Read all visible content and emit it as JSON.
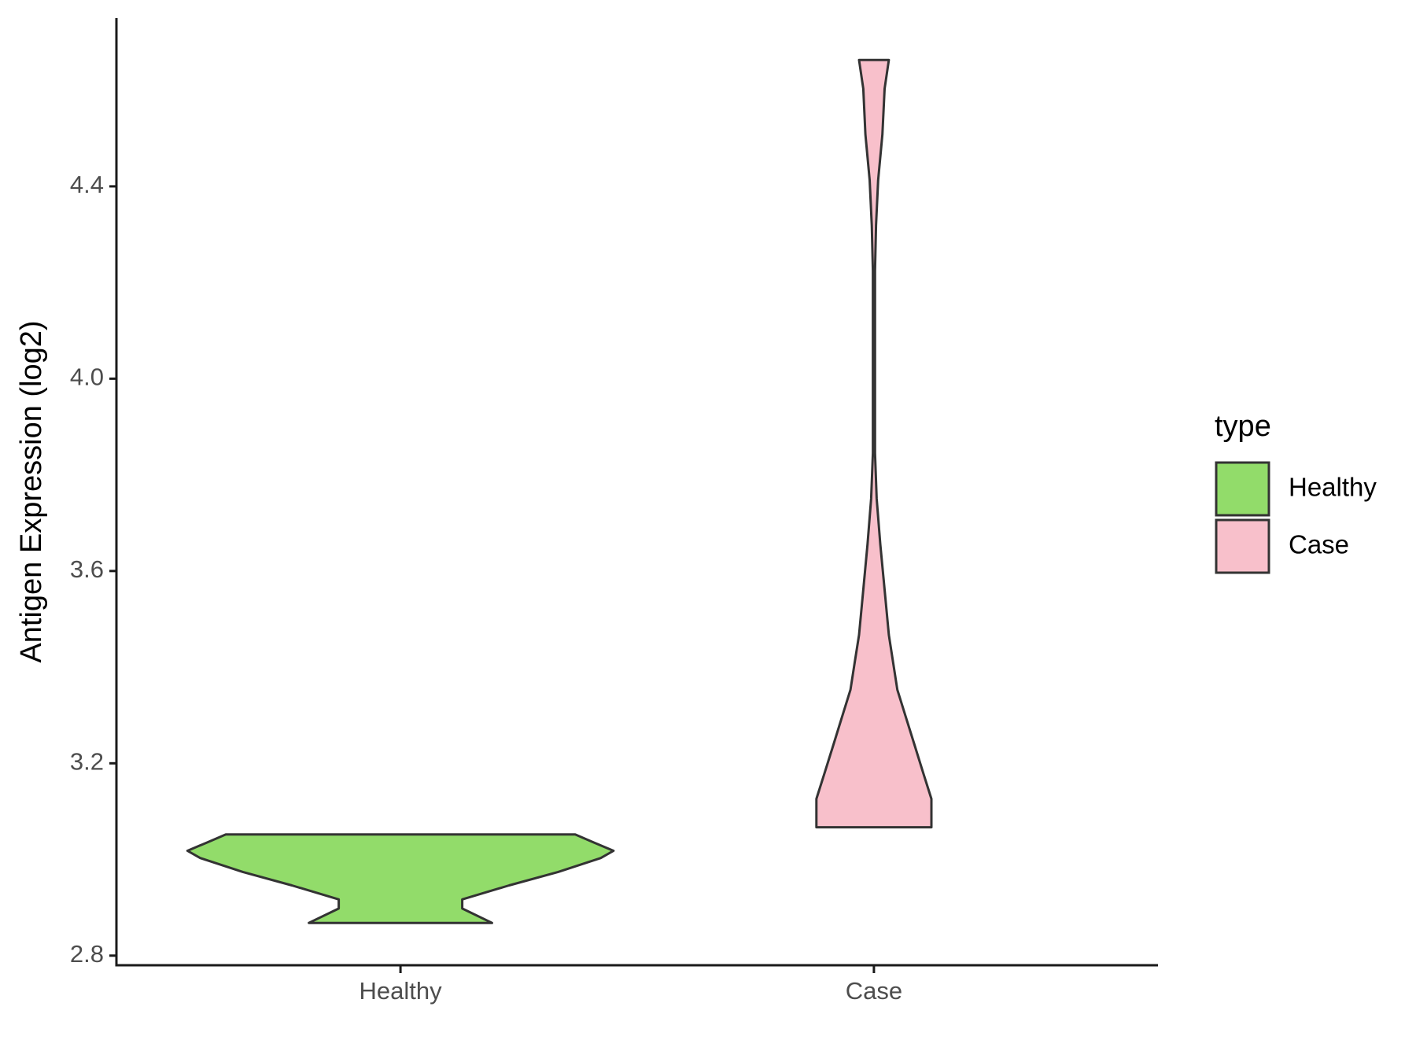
{
  "chart_data": {
    "type": "violin",
    "y_label": "Antigen Expression (log2)",
    "categories": [
      "Healthy",
      "Case"
    ],
    "legend_title": "type",
    "legend_position": "right",
    "ylim": [
      2.78,
      4.75
    ],
    "yticks": [
      2.8,
      3.2,
      3.6,
      4.0,
      4.4
    ],
    "ytick_labels": [
      "2.8",
      "3.2",
      "3.6",
      "4.0",
      "4.4"
    ],
    "series": [
      {
        "name": "Healthy",
        "color": "#92dc6a",
        "y": [
          2.868,
          2.898,
          2.917,
          2.946,
          2.974,
          3.003,
          3.018,
          3.035,
          3.052
        ],
        "density": [
          0.43,
          0.29,
          0.29,
          0.51,
          0.74,
          0.94,
          1.0,
          0.91,
          0.82
        ]
      },
      {
        "name": "Case",
        "color": "#f8c0cb",
        "y": [
          3.067,
          3.126,
          3.182,
          3.239,
          3.296,
          3.353,
          3.41,
          3.467,
          3.561,
          3.656,
          3.751,
          3.845,
          4.035,
          4.224,
          4.319,
          4.413,
          4.508,
          4.603,
          4.663
        ],
        "density": [
          0.27,
          0.27,
          0.23,
          0.19,
          0.15,
          0.11,
          0.09,
          0.07,
          0.05,
          0.03,
          0.013,
          0.005,
          0.005,
          0.005,
          0.01,
          0.02,
          0.04,
          0.05,
          0.07
        ]
      }
    ]
  }
}
